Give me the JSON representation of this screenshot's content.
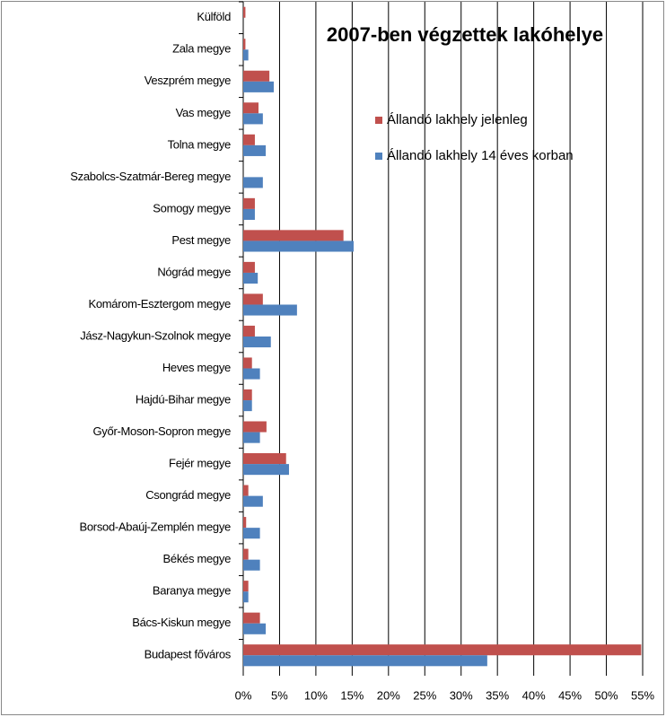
{
  "chart_data": {
    "type": "hbar",
    "title": "2007-ben végzettek lakóhelye",
    "categories": [
      "Külföld",
      "Zala megye",
      "Veszprém megye",
      "Vas megye",
      "Tolna megye",
      "Szabolcs-Szatmár-Bereg megye",
      "Somogy megye",
      "Pest megye",
      "Nógrád megye",
      "Komárom-Esztergom megye",
      "Jász-Nagykun-Szolnok megye",
      "Heves megye",
      "Hajdú-Bihar megye",
      "Győr-Moson-Sopron megye",
      "Fejér megye",
      "Csongrád megye",
      "Borsod-Abaúj-Zemplén megye",
      "Békés megye",
      "Baranya megye",
      "Bács-Kiskun megye",
      "Budapest főváros"
    ],
    "series": [
      {
        "name": "Állandó lakhely jelenleg",
        "color": "#c0504d",
        "values": [
          0.3,
          0.3,
          3.6,
          2.1,
          1.6,
          0,
          1.6,
          13.8,
          1.6,
          2.7,
          1.6,
          1.2,
          1.2,
          3.2,
          5.9,
          0.7,
          0.4,
          0.7,
          0.7,
          2.3,
          54.8
        ]
      },
      {
        "name": "Állandó lakhely 14 éves korban",
        "color": "#4f81bd",
        "values": [
          0,
          0.7,
          4.2,
          2.7,
          3.1,
          2.7,
          1.6,
          15.2,
          2.0,
          7.4,
          3.8,
          2.3,
          1.2,
          2.3,
          6.3,
          2.7,
          2.3,
          2.3,
          0.7,
          3.1,
          33.6
        ]
      }
    ],
    "xlim": [
      0,
      55
    ],
    "xticks": [
      {
        "value": 0,
        "label": "0%"
      },
      {
        "value": 5,
        "label": "5%"
      },
      {
        "value": 10,
        "label": "10%"
      },
      {
        "value": 15,
        "label": "15%"
      },
      {
        "value": 20,
        "label": "20%"
      },
      {
        "value": 25,
        "label": "25%"
      },
      {
        "value": 30,
        "label": "30%"
      },
      {
        "value": 35,
        "label": "35%"
      },
      {
        "value": 40,
        "label": "40%"
      },
      {
        "value": 45,
        "label": "45%"
      },
      {
        "value": 50,
        "label": "50%"
      },
      {
        "value": 55,
        "label": "55%"
      }
    ],
    "grid": true
  }
}
